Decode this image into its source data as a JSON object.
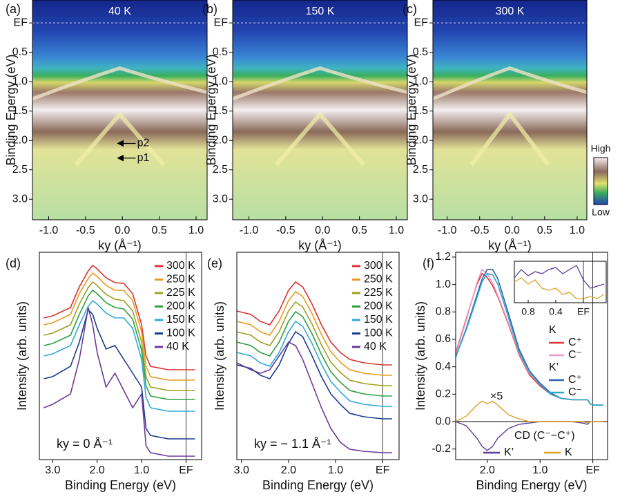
{
  "chart_data": [
    {
      "type": "heatmap",
      "panel_label": "(a)",
      "title": "40 K",
      "xlabel": "ky (Å⁻¹)",
      "ylabel": "Binding Energy (eV)",
      "xlim": [
        -1.22,
        1.15
      ],
      "ylim": [
        3.35,
        -0.39
      ],
      "xticks": [
        {
          "value": -1,
          "label": "-1.0"
        },
        {
          "value": -0.5,
          "label": "-0.5"
        },
        {
          "value": 0,
          "label": "0.0"
        },
        0.5,
        {
          "value": 1,
          "label": "1.0"
        }
      ],
      "yticks": [
        {
          "value": 0,
          "label": "EF"
        },
        0.5,
        {
          "value": 1,
          "label": "1.0"
        },
        1.5,
        {
          "value": 2,
          "label": "2.0"
        },
        2.5,
        {
          "value": 3,
          "label": "3.0"
        }
      ],
      "annotations": [
        {
          "text": "p2",
          "x": 0.2,
          "y": 2.05
        },
        {
          "text": "p1",
          "x": 0.2,
          "y": 2.3
        }
      ]
    },
    {
      "type": "heatmap",
      "panel_label": "(b)",
      "title": "150 K",
      "xlabel": "ky (Å⁻¹)",
      "ylabel": "Binding Energy (eV)",
      "xlim": [
        -1.22,
        1.15
      ],
      "ylim": [
        3.35,
        -0.39
      ],
      "xticks": [
        {
          "value": -1,
          "label": "-1.0"
        },
        {
          "value": -0.5,
          "label": "-0.5"
        },
        {
          "value": 0,
          "label": "0.0"
        },
        0.5,
        {
          "value": 1,
          "label": "1.0"
        }
      ],
      "yticks": [
        {
          "value": 0,
          "label": "EF"
        },
        0.5,
        {
          "value": 1,
          "label": "1.0"
        },
        1.5,
        {
          "value": 2,
          "label": "2.0"
        },
        2.5,
        {
          "value": 3,
          "label": "3.0"
        }
      ]
    },
    {
      "type": "heatmap",
      "panel_label": "(c)",
      "title": "300 K",
      "xlabel": "ky (Å⁻¹)",
      "ylabel": "Binding Energy (eV)",
      "xlim": [
        -1.22,
        1.15
      ],
      "ylim": [
        3.35,
        -0.39
      ],
      "xticks": [
        {
          "value": -1,
          "label": "-1.0"
        },
        {
          "value": -0.5,
          "label": "-0.5"
        },
        {
          "value": 0,
          "label": "0.0"
        },
        0.5,
        {
          "value": 1,
          "label": "1.0"
        }
      ],
      "yticks": [
        {
          "value": 0,
          "label": "EF"
        },
        0.5,
        {
          "value": 1,
          "label": "1.0"
        },
        1.5,
        {
          "value": 2,
          "label": "2.0"
        },
        2.5,
        {
          "value": 3,
          "label": "3.0"
        }
      ],
      "colorbar": {
        "high": "High",
        "low": "Low"
      }
    },
    {
      "type": "line",
      "panel_label": "(d)",
      "xlabel": "Binding Energy (eV)",
      "ylabel": "Intensity (arb. units)",
      "annotation": "ky = 0 Å⁻¹",
      "xlim": [
        3.3,
        -0.35
      ],
      "ylim": [
        0,
        300
      ],
      "xticks": [
        {
          "value": 3,
          "label": "3.0"
        },
        {
          "value": 2,
          "label": "2.0"
        },
        {
          "value": 1,
          "label": "1.0"
        },
        {
          "value": 0,
          "label": "EF"
        }
      ],
      "x": [
        3.2,
        3.0,
        2.6,
        2.4,
        2.2,
        2.1,
        2.0,
        1.8,
        1.6,
        1.4,
        1.2,
        1.0,
        0.9,
        0.8,
        0.4,
        0.0,
        -0.2
      ],
      "series": [
        {
          "name": "300 K",
          "color": "#e03030",
          "values": [
            205,
            208,
            220,
            250,
            273,
            281,
            276,
            263,
            256,
            255,
            240,
            195,
            150,
            135,
            130,
            130,
            130
          ]
        },
        {
          "name": "250 K",
          "color": "#e89a20",
          "values": [
            195,
            198,
            210,
            240,
            262,
            270,
            265,
            252,
            245,
            245,
            230,
            185,
            135,
            120,
            115,
            115,
            115
          ]
        },
        {
          "name": "225 K",
          "color": "#9aa020",
          "values": [
            180,
            183,
            195,
            225,
            249,
            257,
            252,
            239,
            232,
            230,
            215,
            170,
            120,
            105,
            100,
            100,
            100
          ]
        },
        {
          "name": "200 K",
          "color": "#2ea040",
          "values": [
            165,
            168,
            180,
            210,
            237,
            245,
            240,
            227,
            220,
            218,
            203,
            158,
            107,
            92,
            87,
            87,
            87
          ]
        },
        {
          "name": "150 K",
          "color": "#30a8d8",
          "values": [
            150,
            153,
            165,
            195,
            222,
            230,
            225,
            212,
            205,
            205,
            190,
            145,
            90,
            75,
            70,
            70,
            70
          ]
        },
        {
          "name": "100 K",
          "color": "#1a3a90",
          "values": [
            117,
            120,
            135,
            170,
            217,
            210,
            190,
            160,
            165,
            145,
            125,
            105,
            45,
            35,
            30,
            30,
            30
          ]
        },
        {
          "name": "40 K",
          "color": "#6a3a9a",
          "values": [
            75,
            80,
            95,
            145,
            220,
            195,
            155,
            105,
            125,
            100,
            75,
            95,
            20,
            10,
            5,
            5,
            5
          ]
        }
      ]
    },
    {
      "type": "line",
      "panel_label": "(e)",
      "xlabel": "Binding Energy (eV)",
      "ylabel": "Intensity (arb. units)",
      "annotation": "ky = − 1.1 Å⁻¹",
      "xlim": [
        3.1,
        -0.35
      ],
      "ylim": [
        0,
        300
      ],
      "xticks": [
        {
          "value": 3,
          "label": "3.0"
        },
        {
          "value": 2,
          "label": "2.0"
        },
        {
          "value": 1,
          "label": "1.0"
        },
        {
          "value": 0,
          "label": "EF"
        }
      ],
      "x": [
        3.1,
        2.8,
        2.6,
        2.4,
        2.2,
        2.0,
        1.85,
        1.7,
        1.5,
        1.3,
        1.1,
        0.9,
        0.7,
        0.4,
        0.0,
        -0.2
      ],
      "series": [
        {
          "name": "300 K",
          "color": "#e03030",
          "values": [
            215,
            210,
            200,
            195,
            215,
            245,
            257,
            250,
            225,
            195,
            170,
            155,
            145,
            140,
            137,
            137
          ]
        },
        {
          "name": "250 K",
          "color": "#e89a20",
          "values": [
            200,
            195,
            185,
            180,
            200,
            230,
            243,
            236,
            211,
            181,
            156,
            141,
            130,
            125,
            122,
            122
          ]
        },
        {
          "name": "225 K",
          "color": "#9aa020",
          "values": [
            185,
            180,
            170,
            165,
            185,
            215,
            228,
            221,
            196,
            166,
            141,
            126,
            115,
            110,
            107,
            107
          ]
        },
        {
          "name": "200 K",
          "color": "#2ea040",
          "values": [
            170,
            165,
            155,
            150,
            170,
            200,
            214,
            207,
            182,
            152,
            127,
            112,
            100,
            95,
            92,
            92
          ]
        },
        {
          "name": "150 K",
          "color": "#30a8d8",
          "values": [
            155,
            150,
            140,
            135,
            155,
            185,
            200,
            193,
            168,
            138,
            113,
            98,
            85,
            80,
            77,
            77
          ]
        },
        {
          "name": "100 K",
          "color": "#1a3a90",
          "values": [
            137,
            132,
            122,
            117,
            137,
            168,
            185,
            178,
            150,
            120,
            95,
            80,
            67,
            62,
            59,
            59
          ]
        },
        {
          "name": "40 K",
          "color": "#6a3a9a",
          "values": [
            140,
            130,
            125,
            130,
            150,
            170,
            165,
            145,
            110,
            75,
            45,
            25,
            15,
            12,
            10,
            10
          ]
        }
      ]
    },
    {
      "type": "line",
      "panel_label": "(f)",
      "xlabel": "Binding Energy (eV)",
      "ylabel": "Intensity (arb. units)",
      "xlim": [
        2.6,
        -0.28
      ],
      "ylim": [
        -0.277,
        1.235
      ],
      "xticks": [
        {
          "value": 2,
          "label": "2.0"
        },
        {
          "value": 1,
          "label": "1.0"
        },
        {
          "value": 0,
          "label": "EF"
        }
      ],
      "yticks": [
        {
          "value": -0.2,
          "label": "-0.2"
        },
        {
          "value": 0,
          "label": "0.0"
        },
        0.2,
        0.4,
        0.6,
        0.8,
        {
          "value": 1,
          "label": "1.0"
        },
        1.2
      ],
      "x": [
        2.6,
        2.4,
        2.2,
        2.1,
        2.0,
        1.9,
        1.8,
        1.6,
        1.4,
        1.2,
        1.0,
        0.8,
        0.6,
        0.4,
        0.2,
        0.1,
        0.05,
        0.0,
        -0.2
      ],
      "series": [
        {
          "group": "K",
          "name": "C⁺",
          "color": "#e8333a",
          "values": [
            0.5,
            0.75,
            1.0,
            1.08,
            1.05,
            0.99,
            0.91,
            0.71,
            0.49,
            0.34,
            0.26,
            0.2,
            0.17,
            0.16,
            0.16,
            0.16,
            0.13,
            0.12,
            0.12
          ]
        },
        {
          "group": "K",
          "name": "C⁻",
          "color": "#e79ac8",
          "values": [
            0.49,
            0.74,
            1.01,
            1.11,
            1.08,
            1.01,
            0.92,
            0.72,
            0.5,
            0.35,
            0.27,
            0.2,
            0.17,
            0.16,
            0.16,
            0.16,
            0.13,
            0.12,
            0.12
          ]
        },
        {
          "group": "K’",
          "name": "C⁺",
          "color": "#2b5fb0",
          "values": [
            0.47,
            0.68,
            0.92,
            1.04,
            1.11,
            1.11,
            1.04,
            0.79,
            0.53,
            0.37,
            0.28,
            0.21,
            0.17,
            0.16,
            0.16,
            0.16,
            0.13,
            0.12,
            0.12
          ]
        },
        {
          "group": "K’",
          "name": "C⁻",
          "color": "#2ba8c8",
          "values": [
            0.47,
            0.67,
            0.9,
            1.02,
            1.08,
            1.07,
            1.0,
            0.76,
            0.51,
            0.36,
            0.27,
            0.2,
            0.17,
            0.16,
            0.16,
            0.16,
            0.13,
            0.12,
            0.12
          ]
        }
      ],
      "cd_legend_title": "CD (C⁻−C⁺)",
      "cd_annotation": "×5",
      "cd_series": [
        {
          "name": "K’",
          "color": "#5b3a9a",
          "values": [
            0,
            -0.03,
            -0.12,
            -0.18,
            -0.21,
            -0.18,
            -0.12,
            -0.05,
            -0.02,
            -0.01,
            0,
            0,
            0,
            0,
            -0.01,
            -0.02,
            0,
            0,
            0
          ]
        },
        {
          "name": "K",
          "color": "#e0a020",
          "values": [
            0,
            0.04,
            0.12,
            0.15,
            0.13,
            0.15,
            0.12,
            0.05,
            0.02,
            0,
            0,
            0,
            0,
            0,
            0,
            -0.01,
            0,
            0,
            0
          ]
        }
      ],
      "inset": {
        "xlim": [
          1.0,
          -0.33
        ],
        "ylim": [
          0,
          1
        ],
        "xticks": [
          0.8,
          0.4,
          {
            "value": 0,
            "label": "EF"
          }
        ],
        "x": [
          1.0,
          0.9,
          0.8,
          0.7,
          0.6,
          0.5,
          0.4,
          0.3,
          0.2,
          0.1,
          0.0,
          -0.1,
          -0.2,
          -0.3
        ],
        "series": [
          {
            "color": "#5b3a9a",
            "values": [
              0.6,
              0.8,
              0.65,
              0.75,
              0.7,
              0.8,
              0.85,
              0.7,
              0.8,
              0.9,
              0.55,
              0.35,
              0.4,
              0.45
            ]
          },
          {
            "color": "#e0a020",
            "values": [
              0.5,
              0.6,
              0.45,
              0.55,
              0.35,
              0.3,
              0.35,
              0.2,
              0.25,
              0.1,
              0.1,
              0.15,
              0.1,
              0.2
            ]
          }
        ]
      }
    }
  ]
}
